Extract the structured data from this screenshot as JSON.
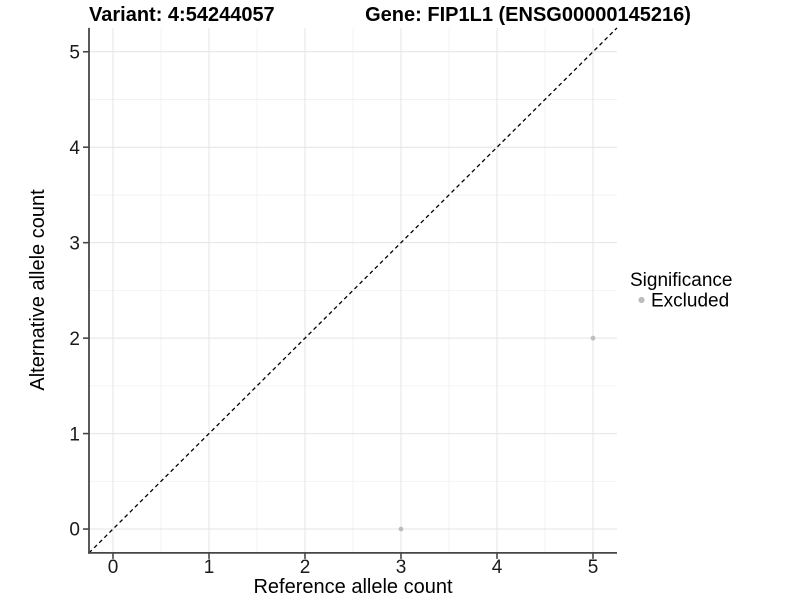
{
  "chart_data": {
    "type": "scatter",
    "title_variant": "Variant: 4:54244057",
    "title_gene": "Gene: FIP1L1 (ENSG00000145216)",
    "xlabel": "Reference allele count",
    "ylabel": "Alternative allele count",
    "xlim": [
      -0.25,
      5.25
    ],
    "ylim": [
      -0.25,
      5.25
    ],
    "x_ticks": [
      0,
      1,
      2,
      3,
      4,
      5
    ],
    "y_ticks": [
      0,
      1,
      2,
      3,
      4,
      5
    ],
    "x_minor_ticks": [
      0.5,
      1.5,
      2.5,
      3.5,
      4.5
    ],
    "y_minor_ticks": [
      0.5,
      1.5,
      2.5,
      3.5,
      4.5
    ],
    "grid": true,
    "identity_line": {
      "style": "dashed",
      "from": [
        -0.25,
        -0.25
      ],
      "to": [
        5.25,
        5.25
      ],
      "color": "#000000"
    },
    "series": [
      {
        "name": "Excluded",
        "color": "#bdbdbd",
        "points": [
          {
            "x": 3,
            "y": 0
          },
          {
            "x": 5,
            "y": 2
          }
        ]
      }
    ],
    "legend": {
      "title": "Significance",
      "position": "right",
      "items": [
        {
          "label": "Excluded",
          "color": "#bdbdbd"
        }
      ]
    }
  }
}
